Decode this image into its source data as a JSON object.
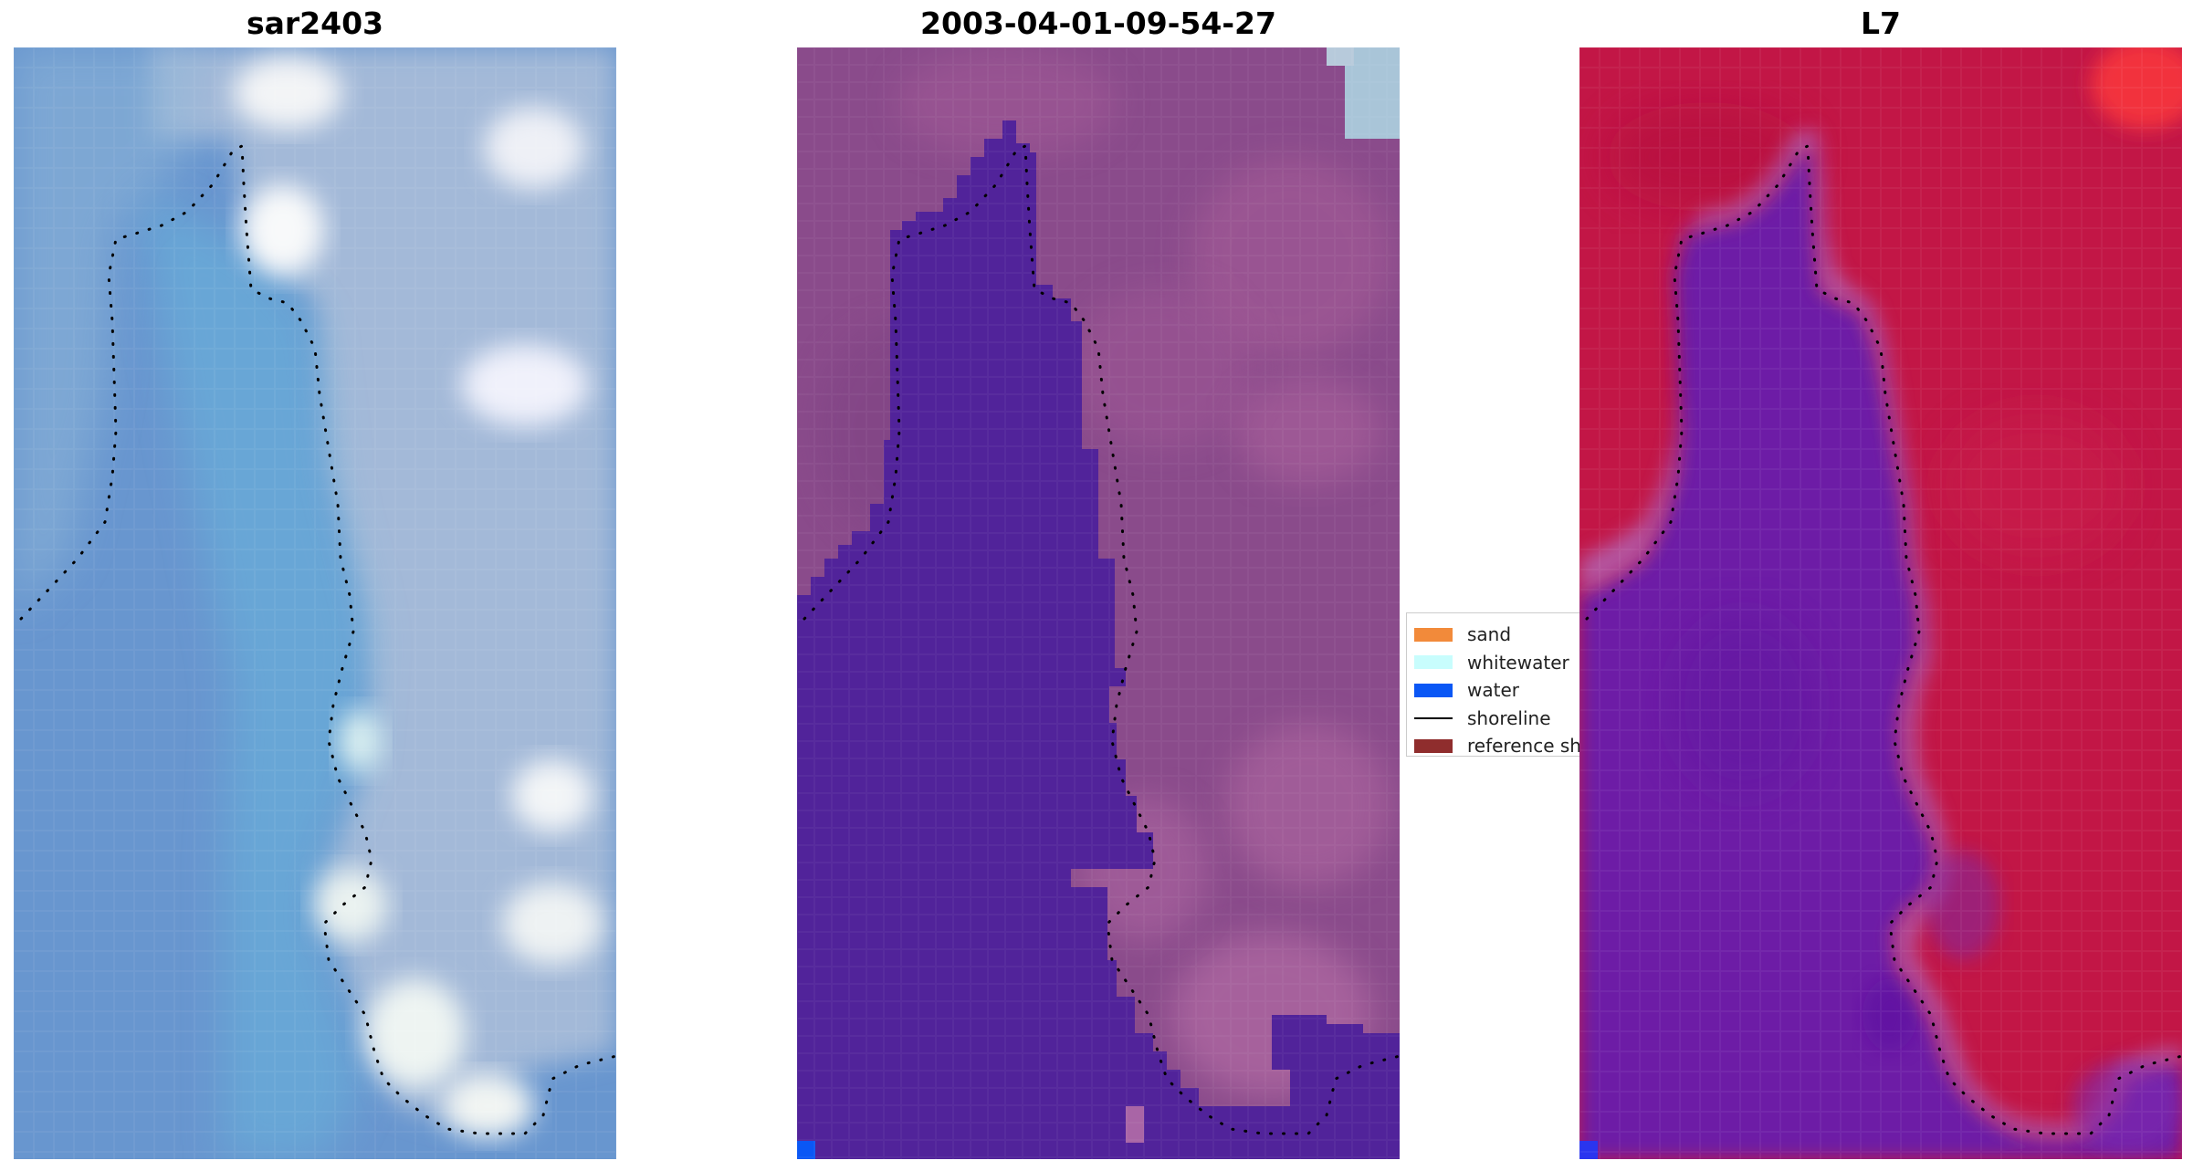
{
  "panels": [
    {
      "title": "sar2403"
    },
    {
      "title": "2003-04-01-09-54-27"
    },
    {
      "title": "L7"
    }
  ],
  "legend": {
    "items": [
      {
        "label": "sand",
        "color": "#f28a3a",
        "kind": "patch"
      },
      {
        "label": "whitewater",
        "color": "#c8fdfd",
        "kind": "patch"
      },
      {
        "label": "water",
        "color": "#0a57f5",
        "kind": "patch"
      },
      {
        "label": "shoreline",
        "color": "#000000",
        "kind": "line"
      },
      {
        "label": "reference shoreline",
        "color": "#8f2d2d",
        "kind": "patch"
      }
    ]
  },
  "colors": {
    "rgb_sea": "#5f92cf",
    "rgb_land": "#9bb5d6",
    "class_water": "#51239a",
    "class_land": "#8c4a8c",
    "index_water": "#6b1fa8",
    "index_land": "#c01641"
  }
}
